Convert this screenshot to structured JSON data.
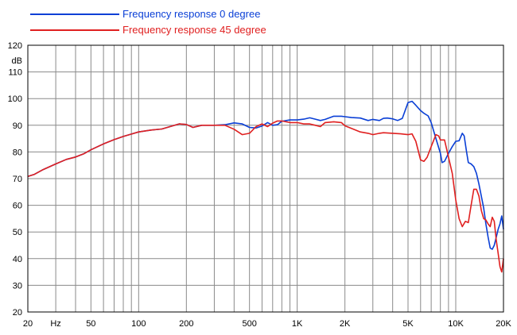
{
  "chart_data": {
    "type": "line",
    "title": "",
    "xlabel": "",
    "ylabel": "dB",
    "x_scale": "log",
    "xlim": [
      20,
      20000
    ],
    "ylim": [
      20,
      120
    ],
    "grid": true,
    "legend_position": "top-left",
    "x_ticks": [
      {
        "value": 20,
        "label": "20"
      },
      {
        "value": 30,
        "label": "Hz"
      },
      {
        "value": 50,
        "label": "50"
      },
      {
        "value": 100,
        "label": "100"
      },
      {
        "value": 200,
        "label": "200"
      },
      {
        "value": 500,
        "label": "500"
      },
      {
        "value": 1000,
        "label": "1K"
      },
      {
        "value": 2000,
        "label": "2K"
      },
      {
        "value": 5000,
        "label": "5K"
      },
      {
        "value": 10000,
        "label": "10K"
      },
      {
        "value": 20000,
        "label": "20K"
      }
    ],
    "y_ticks": [
      {
        "value": 20,
        "label": "20"
      },
      {
        "value": 30,
        "label": "30"
      },
      {
        "value": 40,
        "label": "40"
      },
      {
        "value": 50,
        "label": "50"
      },
      {
        "value": 60,
        "label": "60"
      },
      {
        "value": 70,
        "label": "70"
      },
      {
        "value": 80,
        "label": "80"
      },
      {
        "value": 90,
        "label": "90"
      },
      {
        "value": 100,
        "label": "100"
      },
      {
        "value": 110,
        "label": "110"
      },
      {
        "value": 120,
        "label": "120"
      }
    ],
    "series": [
      {
        "name": "Frequency response 0 degree",
        "color": "#0a3fd6",
        "points": [
          [
            20,
            70.8
          ],
          [
            22,
            71.6
          ],
          [
            25,
            73.4
          ],
          [
            30,
            75.5
          ],
          [
            35,
            77.2
          ],
          [
            40,
            78.1
          ],
          [
            45,
            79.3
          ],
          [
            50,
            80.8
          ],
          [
            60,
            83
          ],
          [
            70,
            84.6
          ],
          [
            80,
            85.8
          ],
          [
            90,
            86.7
          ],
          [
            100,
            87.5
          ],
          [
            120,
            88.2
          ],
          [
            140,
            88.6
          ],
          [
            160,
            89.6
          ],
          [
            180,
            90.5
          ],
          [
            200,
            90.3
          ],
          [
            220,
            89.2
          ],
          [
            250,
            90
          ],
          [
            300,
            90
          ],
          [
            350,
            90.2
          ],
          [
            400,
            90.9
          ],
          [
            450,
            90.5
          ],
          [
            500,
            89.2
          ],
          [
            550,
            89
          ],
          [
            600,
            89.7
          ],
          [
            650,
            91
          ],
          [
            700,
            90
          ],
          [
            750,
            90.2
          ],
          [
            800,
            91.5
          ],
          [
            900,
            92
          ],
          [
            1000,
            92
          ],
          [
            1100,
            92.3
          ],
          [
            1200,
            92.8
          ],
          [
            1300,
            92.3
          ],
          [
            1400,
            91.8
          ],
          [
            1500,
            92.2
          ],
          [
            1700,
            93.4
          ],
          [
            1900,
            93.4
          ],
          [
            2000,
            93.2
          ],
          [
            2200,
            92.9
          ],
          [
            2500,
            92.7
          ],
          [
            2800,
            91.8
          ],
          [
            3000,
            92.2
          ],
          [
            3300,
            91.8
          ],
          [
            3500,
            92.6
          ],
          [
            3700,
            92.7
          ],
          [
            4000,
            92.4
          ],
          [
            4300,
            91.8
          ],
          [
            4600,
            92.6
          ],
          [
            5000,
            98.5
          ],
          [
            5300,
            99
          ],
          [
            5600,
            97.5
          ],
          [
            6000,
            95.5
          ],
          [
            6300,
            94.5
          ],
          [
            6700,
            93.5
          ],
          [
            7000,
            91
          ],
          [
            7500,
            85
          ],
          [
            8000,
            79.5
          ],
          [
            8200,
            76
          ],
          [
            8500,
            76.5
          ],
          [
            9000,
            79.5
          ],
          [
            9500,
            82
          ],
          [
            10000,
            84
          ],
          [
            10500,
            84.2
          ],
          [
            11000,
            87
          ],
          [
            11300,
            86
          ],
          [
            11700,
            80
          ],
          [
            12000,
            76
          ],
          [
            12500,
            75.5
          ],
          [
            13000,
            74.5
          ],
          [
            13500,
            72
          ],
          [
            14000,
            68
          ],
          [
            15000,
            59
          ],
          [
            15500,
            53
          ],
          [
            16000,
            48
          ],
          [
            16500,
            44
          ],
          [
            17000,
            43.5
          ],
          [
            17500,
            45
          ],
          [
            18000,
            48
          ],
          [
            18500,
            51
          ],
          [
            19000,
            53
          ],
          [
            19500,
            56
          ],
          [
            20000,
            51
          ]
        ]
      },
      {
        "name": "Frequency response 45 degree",
        "color": "#e02020",
        "points": [
          [
            20,
            70.8
          ],
          [
            22,
            71.6
          ],
          [
            25,
            73.4
          ],
          [
            30,
            75.5
          ],
          [
            35,
            77.2
          ],
          [
            40,
            78.1
          ],
          [
            45,
            79.3
          ],
          [
            50,
            80.8
          ],
          [
            60,
            83
          ],
          [
            70,
            84.6
          ],
          [
            80,
            85.8
          ],
          [
            90,
            86.7
          ],
          [
            100,
            87.5
          ],
          [
            120,
            88.2
          ],
          [
            140,
            88.6
          ],
          [
            160,
            89.6
          ],
          [
            180,
            90.5
          ],
          [
            200,
            90.3
          ],
          [
            220,
            89.2
          ],
          [
            250,
            90
          ],
          [
            300,
            90
          ],
          [
            350,
            90
          ],
          [
            400,
            88.5
          ],
          [
            450,
            86.5
          ],
          [
            500,
            87
          ],
          [
            550,
            89.5
          ],
          [
            600,
            90.5
          ],
          [
            650,
            89.5
          ],
          [
            700,
            90.8
          ],
          [
            750,
            91.6
          ],
          [
            800,
            91.6
          ],
          [
            900,
            91
          ],
          [
            1000,
            91
          ],
          [
            1100,
            90.5
          ],
          [
            1200,
            90.5
          ],
          [
            1300,
            90
          ],
          [
            1400,
            89.5
          ],
          [
            1500,
            91
          ],
          [
            1700,
            91.3
          ],
          [
            1900,
            91
          ],
          [
            2000,
            89.8
          ],
          [
            2200,
            88.8
          ],
          [
            2500,
            87.5
          ],
          [
            2800,
            87
          ],
          [
            3000,
            86.5
          ],
          [
            3300,
            87
          ],
          [
            3500,
            87.2
          ],
          [
            4000,
            87
          ],
          [
            4500,
            86.8
          ],
          [
            5000,
            86.5
          ],
          [
            5300,
            86.8
          ],
          [
            5600,
            84
          ],
          [
            6000,
            77
          ],
          [
            6300,
            76.5
          ],
          [
            6600,
            78
          ],
          [
            7000,
            82
          ],
          [
            7500,
            86.5
          ],
          [
            7800,
            86
          ],
          [
            8000,
            84.5
          ],
          [
            8500,
            84.5
          ],
          [
            9000,
            78
          ],
          [
            9500,
            72
          ],
          [
            10000,
            62
          ],
          [
            10500,
            55
          ],
          [
            11000,
            52
          ],
          [
            11500,
            54
          ],
          [
            12000,
            53.5
          ],
          [
            12500,
            60
          ],
          [
            13000,
            66
          ],
          [
            13500,
            66
          ],
          [
            14000,
            63.5
          ],
          [
            14500,
            58
          ],
          [
            15000,
            55
          ],
          [
            15500,
            54.5
          ],
          [
            16000,
            53
          ],
          [
            16500,
            52
          ],
          [
            17000,
            55.5
          ],
          [
            17500,
            54
          ],
          [
            18000,
            47
          ],
          [
            18500,
            42
          ],
          [
            19000,
            37
          ],
          [
            19500,
            35
          ],
          [
            20000,
            40
          ]
        ]
      }
    ]
  }
}
